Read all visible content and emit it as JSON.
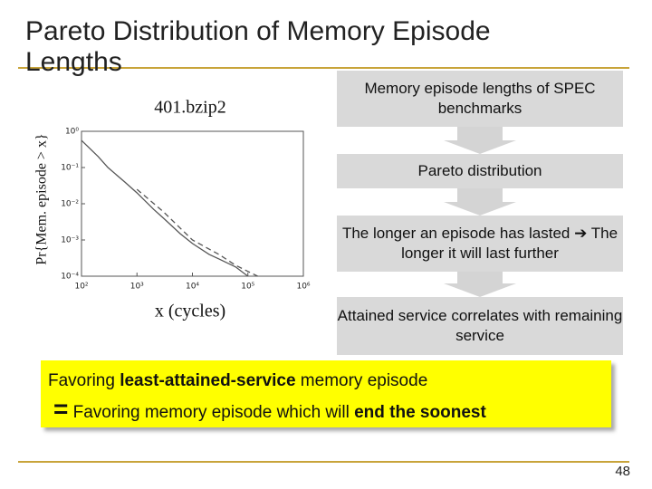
{
  "title": "Pareto Distribution of Memory Episode Lengths",
  "chart_data": {
    "type": "line",
    "title": "401.bzip2",
    "x_label": "x (cycles)",
    "y_label": "Pr{Mem. episode > x}",
    "xscale": "log",
    "yscale": "log",
    "xlim": [
      100,
      1000000
    ],
    "xticks": [
      {
        "value": 100,
        "label": "10²"
      },
      {
        "value": 1000,
        "label": "10³"
      },
      {
        "value": 10000,
        "label": "10⁴"
      },
      {
        "value": 100000,
        "label": "10⁵"
      },
      {
        "value": 1000000,
        "label": "10⁶"
      }
    ],
    "ylim": [
      0.0001,
      1
    ],
    "yticks": [
      {
        "value": 1,
        "label": "10⁰"
      },
      {
        "value": 0.1,
        "label": "10⁻¹"
      },
      {
        "value": 0.01,
        "label": "10⁻²"
      },
      {
        "value": 0.001,
        "label": "10⁻³"
      },
      {
        "value": 0.0001,
        "label": "10⁻⁴"
      }
    ],
    "series": [
      {
        "color": "#555555",
        "style": "solid",
        "x": [
          100,
          200,
          300,
          600,
          1000,
          2000,
          3000,
          6000,
          10000,
          20000,
          30000,
          60000,
          100000
        ],
        "values": [
          0.56,
          0.2,
          0.1,
          0.04,
          0.02,
          0.007,
          0.004,
          0.0015,
          0.0008,
          0.0004,
          0.0003,
          0.00018,
          0.0001
        ]
      },
      {
        "color": "#555555",
        "style": "dashed",
        "x": [
          1000,
          3000,
          10000,
          30000,
          60000,
          150000
        ],
        "values": [
          0.025,
          0.006,
          0.001,
          0.0004,
          0.0002,
          0.0001
        ]
      }
    ]
  },
  "flow": [
    "Memory episode lengths of SPEC benchmarks",
    "Pareto distribution",
    "The longer an episode has lasted ➔ The longer it will last further",
    "Attained service correlates with remaining service"
  ],
  "highlight": {
    "line1": [
      "Favoring ",
      "least-attained-service",
      " memory episode"
    ],
    "line2": [
      "=",
      " Favoring memory episode which will ",
      "end the soonest"
    ]
  },
  "page_number": 48
}
